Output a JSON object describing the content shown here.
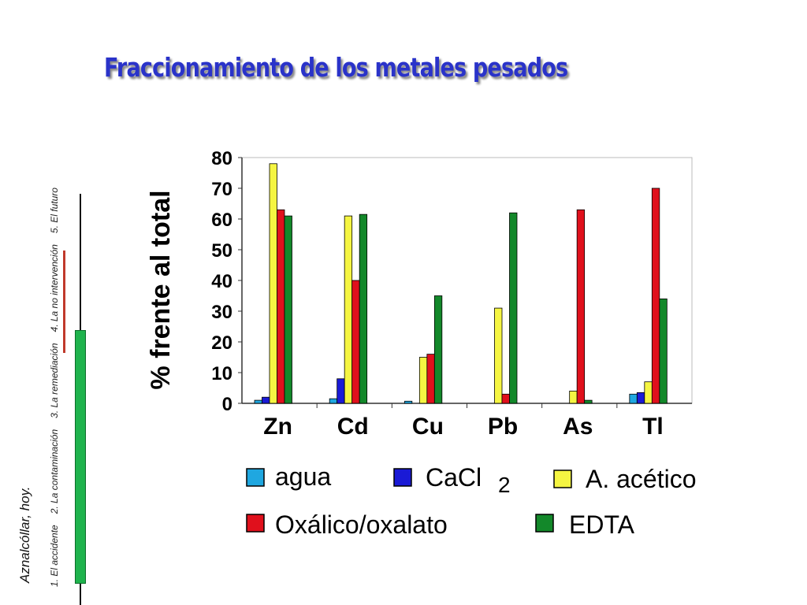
{
  "slide": {
    "side_title": "Aznalcóllar, hoy.",
    "nav": [
      "1. El accidente",
      "2. La contaminación",
      "3. La remediación",
      "4. La no intervención",
      "5. El futuro"
    ],
    "title": "Fraccionamiento de los metales pesados"
  },
  "chart_data": {
    "type": "bar",
    "ylabel": "% frente al total",
    "ylim": [
      0,
      80
    ],
    "yticks": [
      "0",
      "10",
      "20",
      "30",
      "40",
      "50",
      "60",
      "70",
      "80"
    ],
    "categories": [
      "Zn",
      "Cd",
      "Cu",
      "Pb",
      "As",
      "Tl"
    ],
    "series": [
      {
        "name": "agua",
        "color": "#1fa7e0",
        "values": [
          1,
          1.5,
          0.7,
          0,
          0,
          3
        ]
      },
      {
        "name": "CaCl",
        "subscript": "2",
        "color": "#1a1ad6",
        "values": [
          2,
          8,
          0,
          0,
          0,
          3.5
        ]
      },
      {
        "name": "A. acético",
        "color": "#f5f542",
        "values": [
          78,
          61,
          15,
          31,
          4,
          7
        ]
      },
      {
        "name": "Oxálico/oxalato",
        "color": "#e0101c",
        "values": [
          63,
          40,
          16,
          3,
          63,
          70
        ]
      },
      {
        "name": "EDTA",
        "color": "#13882a",
        "values": [
          61,
          61.5,
          35,
          62,
          1,
          34
        ]
      }
    ],
    "legend_position": "bottom",
    "grid": false
  }
}
